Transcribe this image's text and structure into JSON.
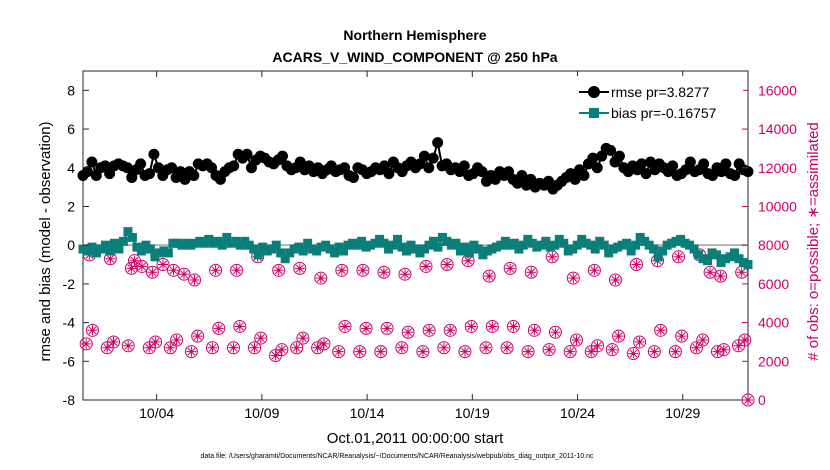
{
  "chart_data": {
    "type": "line",
    "title": "Northern Hemisphere",
    "subtitle": "ACARS_V_WIND_COMPONENT @ 250 hPa",
    "xlabel": "Oct.01,2011 00:00:00 start",
    "ylabel": "rmse and bias (model - observation)",
    "ylabel_right": "# of obs: o=possible; ∗=assimilated",
    "footnote": "data file: /Users/gharamti/Documents/NCAR/Reanalysis/~/Documents/NCAR/Reanalysis/webpub/obs_diag_output_2011-10.nc",
    "x_range_days": [
      0,
      31.6
    ],
    "ylim": [
      -8,
      9
    ],
    "ylim_right": [
      0,
      17000
    ],
    "grid": false,
    "legend_position": "top-right",
    "x_ticks": [
      {
        "day": 3.5,
        "label": "10/04"
      },
      {
        "day": 8.5,
        "label": "10/09"
      },
      {
        "day": 13.5,
        "label": "10/14"
      },
      {
        "day": 18.5,
        "label": "10/19"
      },
      {
        "day": 23.5,
        "label": "10/24"
      },
      {
        "day": 28.5,
        "label": "10/29"
      }
    ],
    "y_ticks": [
      -8,
      -6,
      -4,
      -2,
      0,
      2,
      4,
      6,
      8
    ],
    "y_ticks_right": [
      0,
      2000,
      4000,
      6000,
      8000,
      10000,
      12000,
      14000,
      16000
    ],
    "colors": {
      "rmse": "#000000",
      "bias": "#0a7f7a",
      "obs": "#cc0066",
      "zero_line": "#b3b3b3"
    },
    "series": [
      {
        "name": "rmse pr=3.8277",
        "marker": "circle",
        "values": [
          3.6,
          3.8,
          4.3,
          3.6,
          4.0,
          4.1,
          3.7,
          4.1,
          4.2,
          4.1,
          4.0,
          3.5,
          3.9,
          4.2,
          3.6,
          3.7,
          4.7,
          4.0,
          3.6,
          3.9,
          4.0,
          3.5,
          3.8,
          3.4,
          3.8,
          3.6,
          4.2,
          4.1,
          4.2,
          4.0,
          3.6,
          3.4,
          3.8,
          4.0,
          4.1,
          4.7,
          4.5,
          4.7,
          4.0,
          4.4,
          4.6,
          4.5,
          4.3,
          4.2,
          4.4,
          4.6,
          4.1,
          3.9,
          4.0,
          4.3,
          3.9,
          4.1,
          3.8,
          4.0,
          3.7,
          3.9,
          4.1,
          3.8,
          3.9,
          4.0,
          3.6,
          3.5,
          4.0,
          3.9,
          3.7,
          3.8,
          4.0,
          3.9,
          4.1,
          3.7,
          4.3,
          4.0,
          3.8,
          4.1,
          4.3,
          4.0,
          4.2,
          4.6,
          4.0,
          4.5,
          5.3,
          4.1,
          4.2,
          3.9,
          4.0,
          3.8,
          4.1,
          3.6,
          3.7,
          4.0,
          3.8,
          3.3,
          3.6,
          3.4,
          3.8,
          3.6,
          3.8,
          3.4,
          3.2,
          3.6,
          3.1,
          3.4,
          3.0,
          3.2,
          3.1,
          3.3,
          2.9,
          3.1,
          3.3,
          3.5,
          3.7,
          3.4,
          3.9,
          3.6,
          4.2,
          4.5,
          4.0,
          4.6,
          5.0,
          4.9,
          4.3,
          4.6,
          4.0,
          3.8,
          4.1,
          3.9,
          4.2,
          3.7,
          4.3,
          3.9,
          4.2,
          4.0,
          3.8,
          4.1,
          3.6,
          3.7,
          3.9,
          4.3,
          3.8,
          3.9,
          4.2,
          3.7,
          3.6,
          4.0,
          3.8,
          4.2,
          3.7,
          3.6,
          4.2,
          3.9,
          3.8
        ]
      },
      {
        "name": "bias pr=-0.16757",
        "marker": "square",
        "values": [
          -0.2,
          -0.3,
          -0.1,
          -0.4,
          -0.2,
          0.0,
          -0.3,
          0.1,
          -0.2,
          0.2,
          0.7,
          0.4,
          -0.1,
          -0.3,
          0.0,
          -0.2,
          -0.6,
          -0.4,
          -0.3,
          -0.4,
          0.1,
          0.1,
          0.0,
          0.1,
          0.0,
          0.1,
          0.2,
          0.1,
          0.3,
          0.1,
          0.2,
          0.0,
          0.4,
          0.1,
          0.2,
          0.0,
          0.2,
          0.0,
          -0.2,
          -0.5,
          -0.1,
          -0.3,
          -0.2,
          0.0,
          -0.4,
          -0.7,
          -0.4,
          -0.2,
          -0.1,
          -0.3,
          0.1,
          -0.2,
          -0.3,
          -0.1,
          0.0,
          -0.2,
          -0.4,
          -0.1,
          -0.3,
          0.0,
          0.1,
          0.0,
          0.2,
          -0.1,
          0.0,
          0.1,
          0.3,
          0.1,
          -0.2,
          0.0,
          0.3,
          -0.1,
          -0.3,
          0.0,
          -0.2,
          -0.4,
          -0.2,
          0.0,
          0.2,
          -0.1,
          0.4,
          0.2,
          0.0,
          0.1,
          -0.3,
          -0.1,
          -0.4,
          0.0,
          -0.2,
          -0.5,
          -0.3,
          -0.2,
          -0.1,
          0.0,
          0.2,
          0.0,
          0.1,
          -0.2,
          0.0,
          0.3,
          0.1,
          -0.1,
          0.0,
          0.2,
          -0.1,
          0.0,
          0.3,
          0.1,
          -0.3,
          -0.2,
          0.0,
          0.3,
          0.1,
          0.0,
          -0.2,
          0.2,
          0.0,
          -0.4,
          -0.2,
          -0.1,
          0.0,
          0.1,
          -0.3,
          0.0,
          0.4,
          0.2,
          0.0,
          -0.2,
          -0.6,
          -0.3,
          0.0,
          0.1,
          0.2,
          0.3,
          0.1,
          0.0,
          -0.2,
          -0.5,
          -0.7,
          -0.8,
          -0.4,
          -0.5,
          -0.9,
          -0.7,
          -0.6,
          -0.4,
          -0.7,
          -0.9,
          -1.0
        ]
      },
      {
        "name": "obs possible",
        "marker": "o",
        "axis": "right",
        "x_days": [
          0.15,
          0.45,
          1.15,
          1.45,
          2.15,
          2.45,
          3.15,
          3.45,
          4.15,
          4.45,
          5.15,
          5.45,
          6.15,
          6.45,
          7.15,
          7.45,
          8.15,
          8.45,
          9.15,
          9.45,
          10.15,
          10.45,
          11.15,
          11.45,
          12.15,
          12.45,
          13.15,
          13.45,
          14.15,
          14.45,
          15.15,
          15.45,
          16.15,
          16.45,
          17.15,
          17.45,
          18.15,
          18.45,
          19.15,
          19.45,
          20.15,
          20.45,
          21.15,
          21.45,
          22.15,
          22.45,
          23.15,
          23.45,
          24.15,
          24.45,
          25.15,
          25.45,
          26.15,
          26.45,
          27.15,
          27.45,
          28.15,
          28.45,
          29.15,
          29.45,
          30.15,
          30.45,
          31.15,
          31.45
        ],
        "values": [
          2900,
          3600,
          2700,
          3000,
          2800,
          7200,
          2700,
          3000,
          2700,
          3100,
          2500,
          3300,
          2700,
          3700,
          2700,
          3800,
          2700,
          3200,
          2300,
          2600,
          2700,
          3200,
          2700,
          2900,
          2500,
          3800,
          2500,
          3700,
          2500,
          3700,
          2700,
          3500,
          2500,
          3600,
          2700,
          3600,
          2500,
          3800,
          2700,
          3800,
          2700,
          3800,
          2500,
          3600,
          2600,
          3500,
          2500,
          3100,
          2500,
          2800,
          2600,
          3300,
          2400,
          3000,
          2500,
          3600,
          2500,
          3300,
          2700,
          3100,
          2500,
          2600,
          2800,
          3100
        ]
      },
      {
        "name": "obs possible (daily high)",
        "marker": "o",
        "axis": "right",
        "x_days": [
          0.3,
          1.3,
          2.3,
          2.8,
          3.3,
          3.8,
          4.3,
          4.8,
          5.3,
          6.3,
          7.3,
          8.3,
          9.3,
          10.3,
          11.3,
          12.3,
          13.3,
          14.3,
          15.3,
          16.3,
          17.3,
          18.3,
          19.3,
          20.3,
          21.3,
          22.3,
          23.3,
          24.3,
          25.3,
          26.3,
          27.3,
          28.3,
          29.3,
          29.8,
          30.3,
          31.3
        ],
        "values": [
          7500,
          7300,
          6800,
          6900,
          6600,
          7000,
          6700,
          6500,
          6200,
          6700,
          6700,
          7400,
          6700,
          6800,
          6300,
          6700,
          6700,
          6600,
          6500,
          6900,
          7000,
          7200,
          6400,
          6800,
          6600,
          7400,
          6300,
          6700,
          6200,
          7000,
          7200,
          7400,
          7500,
          6600,
          6400,
          6600
        ]
      },
      {
        "name": "obs assimilated",
        "marker": "*",
        "axis": "right",
        "same_as": "obs possible"
      }
    ]
  }
}
